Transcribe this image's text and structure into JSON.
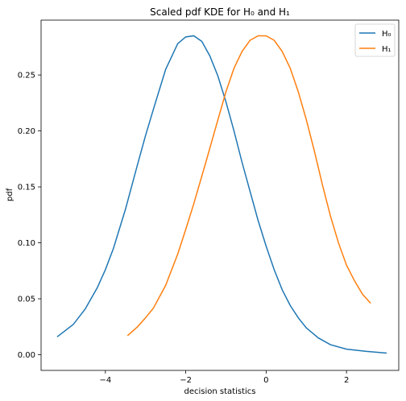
{
  "chart_data": {
    "type": "line",
    "title": "Scaled pdf KDE for H₀ and H₁",
    "xlabel": "decision statistics",
    "ylabel": "pdf",
    "xlim": [
      -5.6,
      3.3
    ],
    "ylim": [
      -0.014,
      0.299
    ],
    "xticks": [
      -4,
      -2,
      0,
      2
    ],
    "xtick_labels": [
      "−4",
      "−2",
      "0",
      "2"
    ],
    "yticks": [
      0.0,
      0.05,
      0.1,
      0.15,
      0.2,
      0.25
    ],
    "ytick_labels": [
      "0.00",
      "0.05",
      "0.10",
      "0.15",
      "0.20",
      "0.25"
    ],
    "grid": false,
    "legend_position": "top-right",
    "series": [
      {
        "name": "H₀",
        "color": "#1f77b4",
        "x": [
          -5.2,
          -4.8,
          -4.5,
          -4.2,
          -4.0,
          -3.8,
          -3.5,
          -3.2,
          -3.0,
          -2.8,
          -2.5,
          -2.2,
          -2.0,
          -1.8,
          -1.6,
          -1.4,
          -1.2,
          -1.0,
          -0.8,
          -0.6,
          -0.4,
          -0.2,
          0.0,
          0.2,
          0.4,
          0.6,
          0.8,
          1.0,
          1.3,
          1.6,
          2.0,
          2.5,
          3.0
        ],
        "y": [
          0.016,
          0.027,
          0.041,
          0.06,
          0.076,
          0.095,
          0.13,
          0.17,
          0.196,
          0.22,
          0.255,
          0.278,
          0.284,
          0.285,
          0.28,
          0.267,
          0.249,
          0.226,
          0.2,
          0.172,
          0.146,
          0.12,
          0.097,
          0.076,
          0.058,
          0.044,
          0.033,
          0.024,
          0.015,
          0.009,
          0.005,
          0.003,
          0.0015
        ]
      },
      {
        "name": "H₁",
        "color": "#ff7f0e",
        "x": [
          -3.45,
          -3.2,
          -3.0,
          -2.8,
          -2.5,
          -2.2,
          -2.0,
          -1.8,
          -1.5,
          -1.2,
          -1.0,
          -0.8,
          -0.6,
          -0.4,
          -0.2,
          0.0,
          0.2,
          0.4,
          0.6,
          0.8,
          1.0,
          1.2,
          1.4,
          1.6,
          1.8,
          2.0,
          2.2,
          2.4,
          2.6
        ],
        "y": [
          0.017,
          0.025,
          0.033,
          0.042,
          0.062,
          0.09,
          0.112,
          0.135,
          0.172,
          0.21,
          0.235,
          0.256,
          0.271,
          0.281,
          0.285,
          0.285,
          0.281,
          0.271,
          0.256,
          0.235,
          0.21,
          0.182,
          0.152,
          0.124,
          0.1,
          0.08,
          0.066,
          0.054,
          0.046
        ]
      }
    ]
  }
}
